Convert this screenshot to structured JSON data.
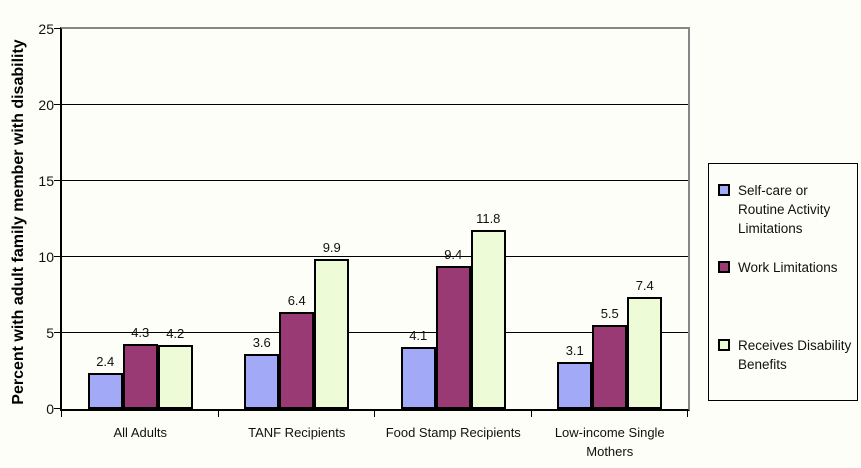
{
  "chart_data": {
    "type": "bar",
    "title": "",
    "xlabel": "",
    "ylabel": "Percent with adult family member with disability",
    "categories": [
      "All Adults",
      "TANF Recipients",
      "Food Stamp Recipients",
      "Low-income Single Mothers"
    ],
    "series": [
      {
        "name": "Self-care or Routine Activity Limitations",
        "color": "#a2aaf8",
        "values": [
          2.4,
          3.6,
          4.1,
          3.1
        ]
      },
      {
        "name": "Work Limitations",
        "color": "#993a74",
        "values": [
          4.3,
          6.4,
          9.4,
          5.5
        ]
      },
      {
        "name": "Receives Disability Benefits",
        "color": "#eefbd7",
        "values": [
          4.2,
          9.9,
          11.8,
          7.4
        ]
      }
    ],
    "ylim": [
      0,
      25
    ],
    "yticks": [
      0,
      5,
      10,
      15,
      20,
      25
    ],
    "grid": true,
    "value_labels": true,
    "legend_position": "right"
  },
  "colors": {
    "axis": "#000000",
    "plot_border_gray": "#878787",
    "background": "#fdfef7"
  }
}
